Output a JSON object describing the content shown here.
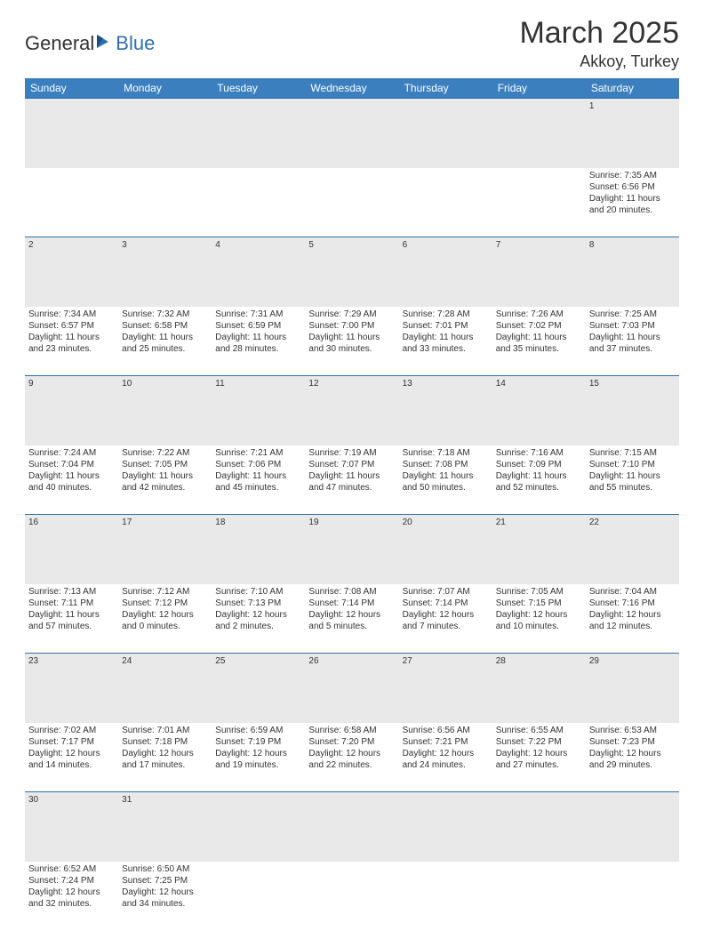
{
  "brand": {
    "part1": "General",
    "part2": "Blue"
  },
  "title": "March 2025",
  "location": "Akkoy, Turkey",
  "colors": {
    "header_bg": "#3b7fbf",
    "header_text": "#ffffff",
    "daynum_bg": "#e9e9e9",
    "border": "#2f6fab",
    "text": "#333333",
    "brand_blue": "#2f6fab",
    "page_bg": "#ffffff"
  },
  "weekdays": [
    "Sunday",
    "Monday",
    "Tuesday",
    "Wednesday",
    "Thursday",
    "Friday",
    "Saturday"
  ],
  "weeks": [
    [
      null,
      null,
      null,
      null,
      null,
      null,
      {
        "n": "1",
        "sr": "Sunrise: 7:35 AM",
        "ss": "Sunset: 6:56 PM",
        "d1": "Daylight: 11 hours",
        "d2": "and 20 minutes."
      }
    ],
    [
      {
        "n": "2",
        "sr": "Sunrise: 7:34 AM",
        "ss": "Sunset: 6:57 PM",
        "d1": "Daylight: 11 hours",
        "d2": "and 23 minutes."
      },
      {
        "n": "3",
        "sr": "Sunrise: 7:32 AM",
        "ss": "Sunset: 6:58 PM",
        "d1": "Daylight: 11 hours",
        "d2": "and 25 minutes."
      },
      {
        "n": "4",
        "sr": "Sunrise: 7:31 AM",
        "ss": "Sunset: 6:59 PM",
        "d1": "Daylight: 11 hours",
        "d2": "and 28 minutes."
      },
      {
        "n": "5",
        "sr": "Sunrise: 7:29 AM",
        "ss": "Sunset: 7:00 PM",
        "d1": "Daylight: 11 hours",
        "d2": "and 30 minutes."
      },
      {
        "n": "6",
        "sr": "Sunrise: 7:28 AM",
        "ss": "Sunset: 7:01 PM",
        "d1": "Daylight: 11 hours",
        "d2": "and 33 minutes."
      },
      {
        "n": "7",
        "sr": "Sunrise: 7:26 AM",
        "ss": "Sunset: 7:02 PM",
        "d1": "Daylight: 11 hours",
        "d2": "and 35 minutes."
      },
      {
        "n": "8",
        "sr": "Sunrise: 7:25 AM",
        "ss": "Sunset: 7:03 PM",
        "d1": "Daylight: 11 hours",
        "d2": "and 37 minutes."
      }
    ],
    [
      {
        "n": "9",
        "sr": "Sunrise: 7:24 AM",
        "ss": "Sunset: 7:04 PM",
        "d1": "Daylight: 11 hours",
        "d2": "and 40 minutes."
      },
      {
        "n": "10",
        "sr": "Sunrise: 7:22 AM",
        "ss": "Sunset: 7:05 PM",
        "d1": "Daylight: 11 hours",
        "d2": "and 42 minutes."
      },
      {
        "n": "11",
        "sr": "Sunrise: 7:21 AM",
        "ss": "Sunset: 7:06 PM",
        "d1": "Daylight: 11 hours",
        "d2": "and 45 minutes."
      },
      {
        "n": "12",
        "sr": "Sunrise: 7:19 AM",
        "ss": "Sunset: 7:07 PM",
        "d1": "Daylight: 11 hours",
        "d2": "and 47 minutes."
      },
      {
        "n": "13",
        "sr": "Sunrise: 7:18 AM",
        "ss": "Sunset: 7:08 PM",
        "d1": "Daylight: 11 hours",
        "d2": "and 50 minutes."
      },
      {
        "n": "14",
        "sr": "Sunrise: 7:16 AM",
        "ss": "Sunset: 7:09 PM",
        "d1": "Daylight: 11 hours",
        "d2": "and 52 minutes."
      },
      {
        "n": "15",
        "sr": "Sunrise: 7:15 AM",
        "ss": "Sunset: 7:10 PM",
        "d1": "Daylight: 11 hours",
        "d2": "and 55 minutes."
      }
    ],
    [
      {
        "n": "16",
        "sr": "Sunrise: 7:13 AM",
        "ss": "Sunset: 7:11 PM",
        "d1": "Daylight: 11 hours",
        "d2": "and 57 minutes."
      },
      {
        "n": "17",
        "sr": "Sunrise: 7:12 AM",
        "ss": "Sunset: 7:12 PM",
        "d1": "Daylight: 12 hours",
        "d2": "and 0 minutes."
      },
      {
        "n": "18",
        "sr": "Sunrise: 7:10 AM",
        "ss": "Sunset: 7:13 PM",
        "d1": "Daylight: 12 hours",
        "d2": "and 2 minutes."
      },
      {
        "n": "19",
        "sr": "Sunrise: 7:08 AM",
        "ss": "Sunset: 7:14 PM",
        "d1": "Daylight: 12 hours",
        "d2": "and 5 minutes."
      },
      {
        "n": "20",
        "sr": "Sunrise: 7:07 AM",
        "ss": "Sunset: 7:14 PM",
        "d1": "Daylight: 12 hours",
        "d2": "and 7 minutes."
      },
      {
        "n": "21",
        "sr": "Sunrise: 7:05 AM",
        "ss": "Sunset: 7:15 PM",
        "d1": "Daylight: 12 hours",
        "d2": "and 10 minutes."
      },
      {
        "n": "22",
        "sr": "Sunrise: 7:04 AM",
        "ss": "Sunset: 7:16 PM",
        "d1": "Daylight: 12 hours",
        "d2": "and 12 minutes."
      }
    ],
    [
      {
        "n": "23",
        "sr": "Sunrise: 7:02 AM",
        "ss": "Sunset: 7:17 PM",
        "d1": "Daylight: 12 hours",
        "d2": "and 14 minutes."
      },
      {
        "n": "24",
        "sr": "Sunrise: 7:01 AM",
        "ss": "Sunset: 7:18 PM",
        "d1": "Daylight: 12 hours",
        "d2": "and 17 minutes."
      },
      {
        "n": "25",
        "sr": "Sunrise: 6:59 AM",
        "ss": "Sunset: 7:19 PM",
        "d1": "Daylight: 12 hours",
        "d2": "and 19 minutes."
      },
      {
        "n": "26",
        "sr": "Sunrise: 6:58 AM",
        "ss": "Sunset: 7:20 PM",
        "d1": "Daylight: 12 hours",
        "d2": "and 22 minutes."
      },
      {
        "n": "27",
        "sr": "Sunrise: 6:56 AM",
        "ss": "Sunset: 7:21 PM",
        "d1": "Daylight: 12 hours",
        "d2": "and 24 minutes."
      },
      {
        "n": "28",
        "sr": "Sunrise: 6:55 AM",
        "ss": "Sunset: 7:22 PM",
        "d1": "Daylight: 12 hours",
        "d2": "and 27 minutes."
      },
      {
        "n": "29",
        "sr": "Sunrise: 6:53 AM",
        "ss": "Sunset: 7:23 PM",
        "d1": "Daylight: 12 hours",
        "d2": "and 29 minutes."
      }
    ],
    [
      {
        "n": "30",
        "sr": "Sunrise: 6:52 AM",
        "ss": "Sunset: 7:24 PM",
        "d1": "Daylight: 12 hours",
        "d2": "and 32 minutes."
      },
      {
        "n": "31",
        "sr": "Sunrise: 6:50 AM",
        "ss": "Sunset: 7:25 PM",
        "d1": "Daylight: 12 hours",
        "d2": "and 34 minutes."
      },
      null,
      null,
      null,
      null,
      null
    ]
  ]
}
